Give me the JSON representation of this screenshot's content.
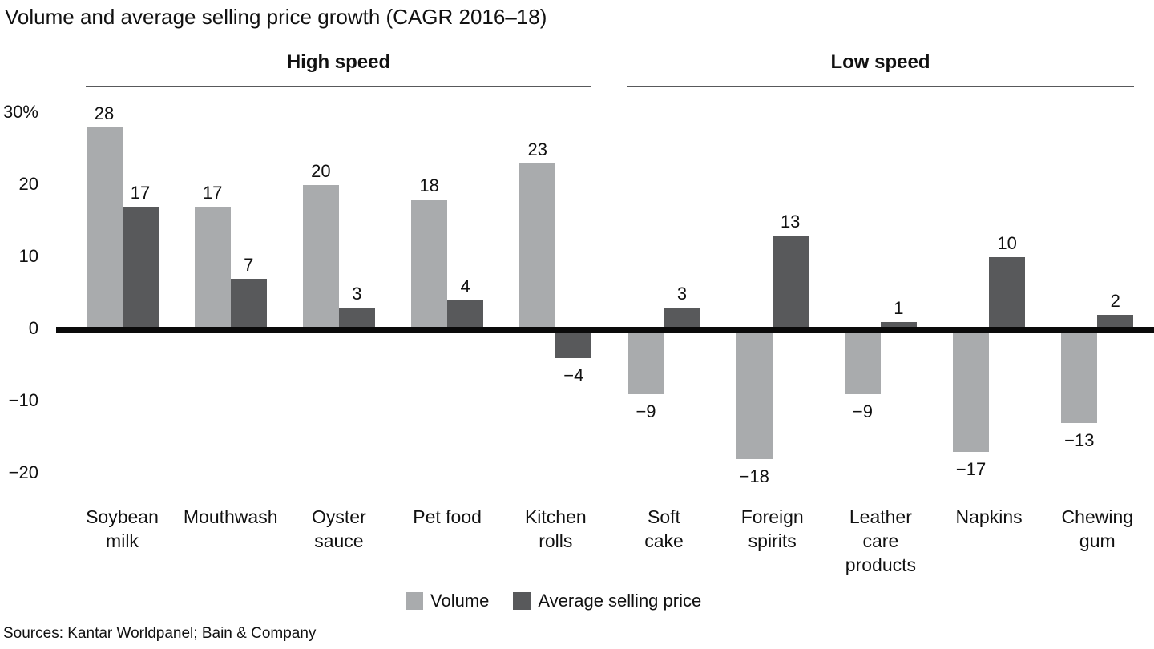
{
  "title": "Volume and average selling price growth (CAGR 2016–18)",
  "source_line": "Sources: Kantar Worldpanel; Bain & Company",
  "colors": {
    "volume_bar": "#a9abad",
    "asp_bar": "#58595b",
    "axis_line": "#0a0a0a",
    "group_underline": "#58595b"
  },
  "groups": [
    {
      "label": "High speed"
    },
    {
      "label": "Low speed"
    }
  ],
  "legend": [
    {
      "label": "Volume",
      "color": "#a9abad"
    },
    {
      "label": "Average selling price",
      "color": "#58595b"
    }
  ],
  "y_axis": {
    "ticks": [
      "30%",
      "20",
      "10",
      "0",
      "−10",
      "−20"
    ],
    "tick_values": [
      30,
      20,
      10,
      0,
      -10,
      -20
    ]
  },
  "chart_data": {
    "type": "bar",
    "title": "Volume and average selling price growth (CAGR 2016–18)",
    "categories": [
      "Soybean milk",
      "Mouthwash",
      "Oyster sauce",
      "Pet food",
      "Kitchen rolls",
      "Soft cake",
      "Foreign spirits",
      "Leather care products",
      "Napkins",
      "Chewing gum"
    ],
    "category_lines": [
      [
        "Soybean",
        "milk"
      ],
      [
        "Mouthwash"
      ],
      [
        "Oyster",
        "sauce"
      ],
      [
        "Pet food"
      ],
      [
        "Kitchen",
        "rolls"
      ],
      [
        "Soft",
        "cake"
      ],
      [
        "Foreign",
        "spirits"
      ],
      [
        "Leather",
        "care",
        "products"
      ],
      [
        "Napkins"
      ],
      [
        "Chewing",
        "gum"
      ]
    ],
    "category_groups": [
      "High speed",
      "High speed",
      "High speed",
      "High speed",
      "High speed",
      "Low speed",
      "Low speed",
      "Low speed",
      "Low speed",
      "Low speed"
    ],
    "series": [
      {
        "name": "Volume",
        "values": [
          28,
          17,
          20,
          18,
          23,
          -9,
          -18,
          -9,
          -17,
          -13
        ]
      },
      {
        "name": "Average selling price",
        "values": [
          17,
          7,
          3,
          4,
          -4,
          3,
          13,
          1,
          10,
          2
        ]
      }
    ],
    "ylim": [
      -20,
      30
    ],
    "grid": false,
    "legend_position": "bottom"
  }
}
